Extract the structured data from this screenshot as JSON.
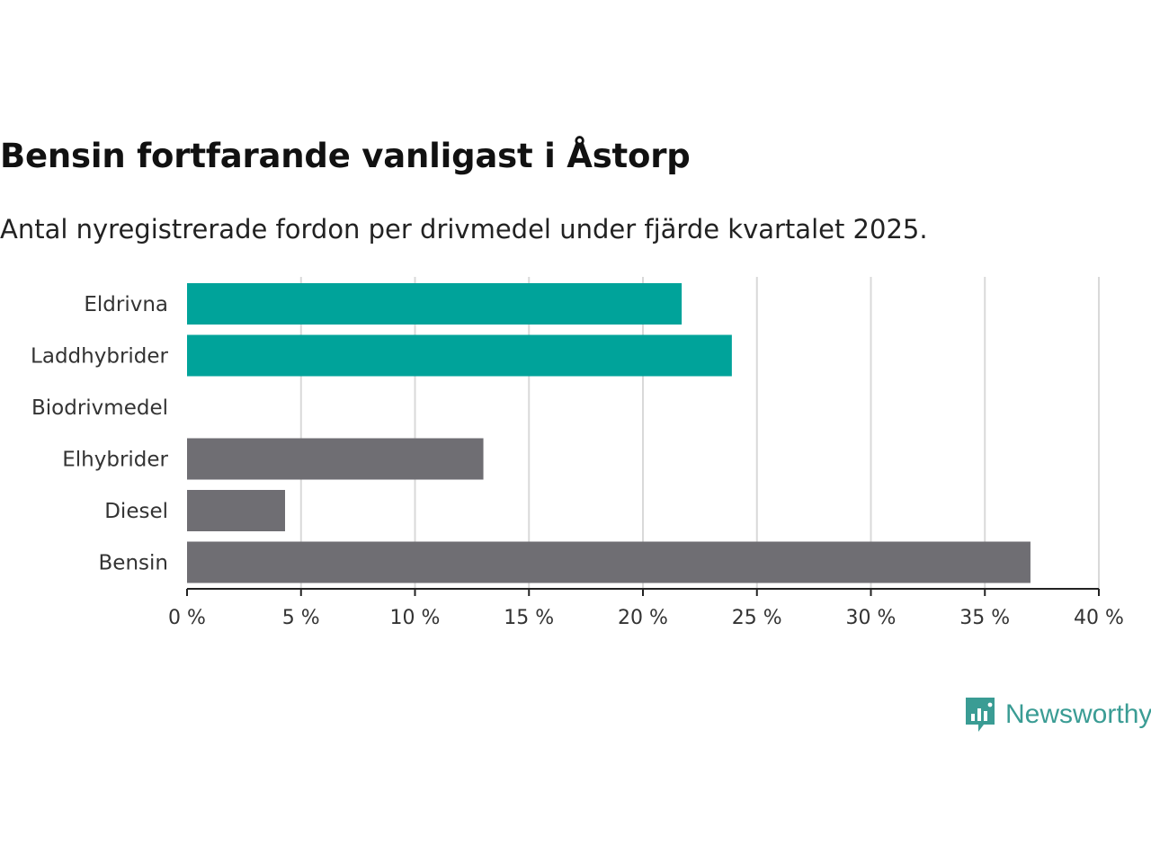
{
  "chart_data": {
    "type": "bar",
    "orientation": "horizontal",
    "title": "Bensin fortfarande vanligast i Åstorp",
    "subtitle": "Antal nyregistrerade fordon per drivmedel under fjärde kvartalet 2025.",
    "categories": [
      "Eldrivna",
      "Laddhybrider",
      "Biodrivmedel",
      "Elhybrider",
      "Diesel",
      "Bensin"
    ],
    "values": [
      21.7,
      23.9,
      0,
      13.0,
      4.3,
      37.0
    ],
    "bar_colors": [
      "#00a39a",
      "#00a39a",
      "#6f6e73",
      "#6f6e73",
      "#6f6e73",
      "#6f6e73"
    ],
    "xlim": [
      0,
      40
    ],
    "xticks": [
      0,
      5,
      10,
      15,
      20,
      25,
      30,
      35,
      40
    ],
    "xtick_labels": [
      "0 %",
      "5 %",
      "10 %",
      "15 %",
      "20 %",
      "25 %",
      "30 %",
      "35 %",
      "40 %"
    ],
    "grid": true
  },
  "brand": {
    "name": "Newsworthy",
    "color": "#3a9c94"
  }
}
